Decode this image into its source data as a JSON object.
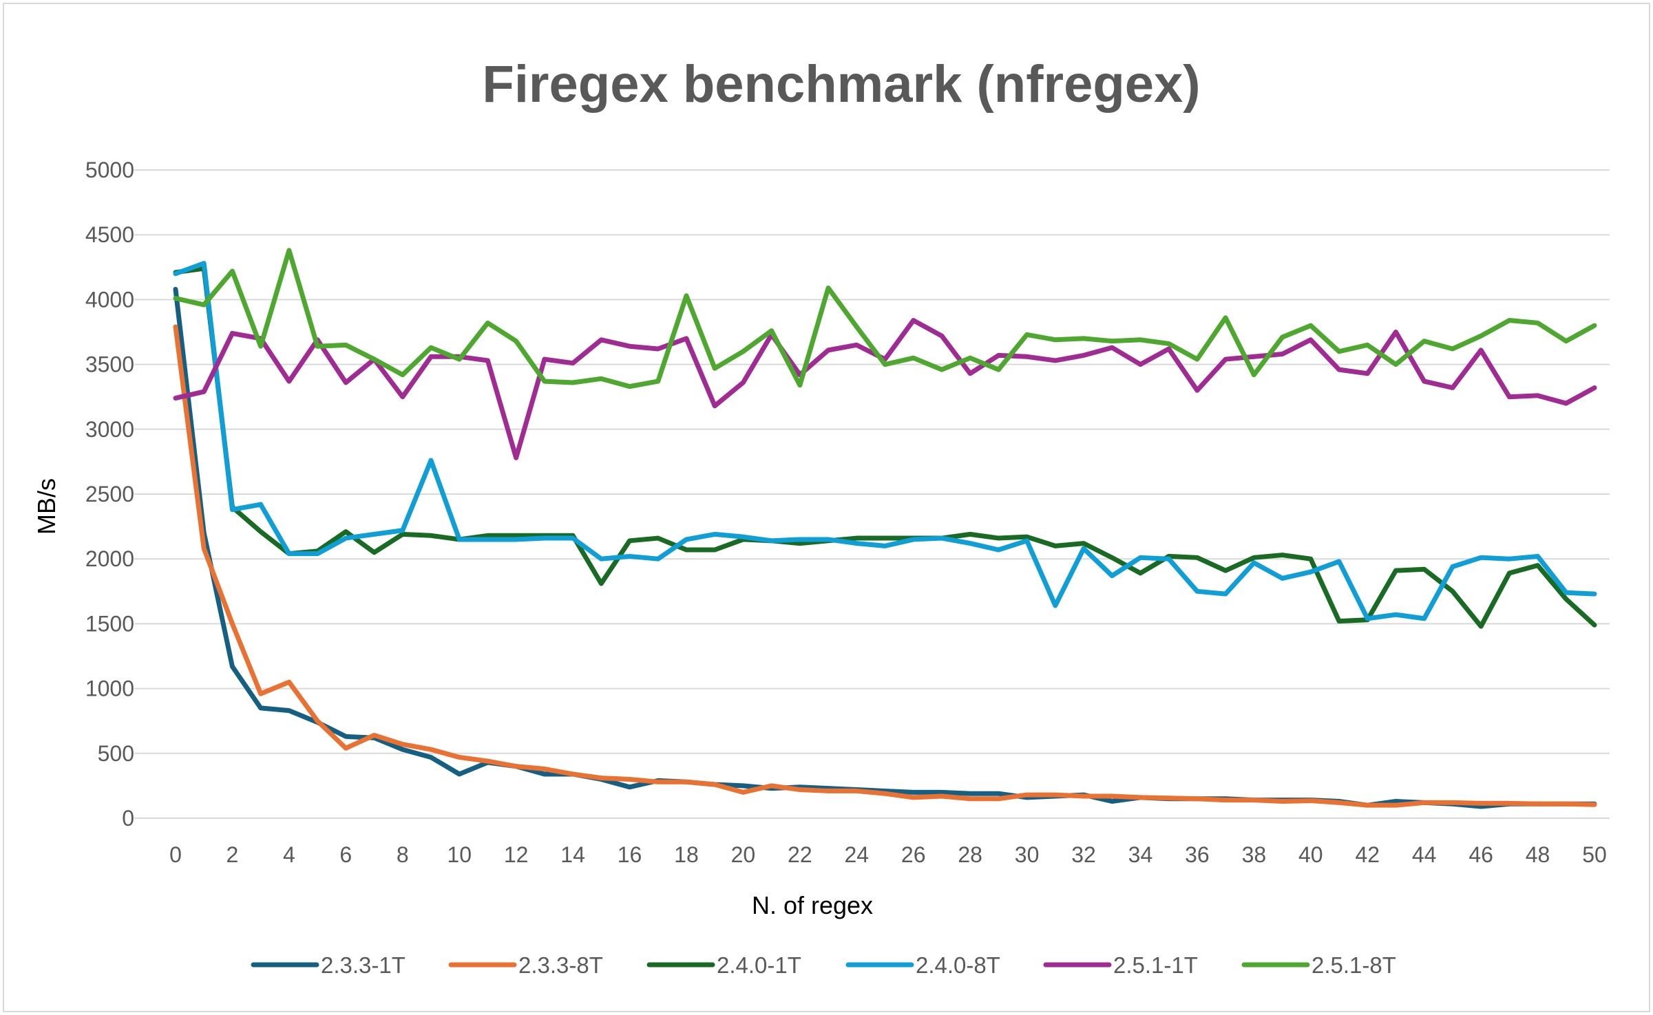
{
  "chart_data": {
    "type": "line",
    "title": "Firegex benchmark (nfregex)",
    "xlabel": "N. of regex",
    "ylabel": "MB/s",
    "xlim": [
      0,
      50
    ],
    "ylim": [
      0,
      5000
    ],
    "x_ticks": [
      0,
      2,
      4,
      6,
      8,
      10,
      12,
      14,
      16,
      18,
      20,
      22,
      24,
      26,
      28,
      30,
      32,
      34,
      36,
      38,
      40,
      42,
      44,
      46,
      48,
      50
    ],
    "y_ticks": [
      0,
      500,
      1000,
      1500,
      2000,
      2500,
      3000,
      3500,
      4000,
      4500,
      5000
    ],
    "grid": true,
    "legend_position": "bottom",
    "x": [
      0,
      1,
      2,
      3,
      4,
      5,
      6,
      7,
      8,
      9,
      10,
      11,
      12,
      13,
      14,
      15,
      16,
      17,
      18,
      19,
      20,
      21,
      22,
      23,
      24,
      25,
      26,
      27,
      28,
      29,
      30,
      31,
      32,
      33,
      34,
      35,
      36,
      37,
      38,
      39,
      40,
      41,
      42,
      43,
      44,
      45,
      46,
      47,
      48,
      49,
      50
    ],
    "series": [
      {
        "name": "2.3.3-1T",
        "color": "#156082",
        "values": [
          4080,
          2200,
          1170,
          850,
          830,
          740,
          630,
          620,
          530,
          470,
          340,
          430,
          400,
          340,
          340,
          300,
          240,
          290,
          280,
          260,
          250,
          230,
          240,
          230,
          220,
          210,
          200,
          200,
          190,
          190,
          160,
          170,
          180,
          130,
          160,
          150,
          150,
          150,
          140,
          140,
          140,
          130,
          100,
          130,
          120,
          110,
          90,
          110,
          110,
          110,
          110
        ]
      },
      {
        "name": "2.3.3-8T",
        "color": "#E97132",
        "values": [
          3790,
          2080,
          1500,
          960,
          1050,
          750,
          540,
          640,
          570,
          530,
          470,
          440,
          400,
          380,
          340,
          310,
          300,
          280,
          280,
          260,
          200,
          250,
          220,
          210,
          210,
          190,
          160,
          170,
          150,
          150,
          180,
          180,
          170,
          170,
          160,
          155,
          150,
          140,
          140,
          130,
          135,
          120,
          100,
          100,
          120,
          120,
          115,
          115,
          110,
          110,
          105
        ]
      },
      {
        "name": "2.4.0-1T",
        "color": "#196B24",
        "values": [
          4210,
          4240,
          2400,
          2210,
          2040,
          2060,
          2210,
          2050,
          2190,
          2180,
          2150,
          2180,
          2180,
          2180,
          2180,
          1810,
          2140,
          2160,
          2070,
          2070,
          2150,
          2140,
          2120,
          2140,
          2160,
          2160,
          2160,
          2160,
          2190,
          2160,
          2170,
          2100,
          2120,
          2010,
          1890,
          2020,
          2010,
          1910,
          2010,
          2030,
          2000,
          1520,
          1530,
          1910,
          1920,
          1750,
          1480,
          1890,
          1950,
          1690,
          1490
        ]
      },
      {
        "name": "2.4.0-8T",
        "color": "#0F9ED5",
        "values": [
          4200,
          4280,
          2380,
          2420,
          2040,
          2040,
          2160,
          2190,
          2220,
          2760,
          2150,
          2150,
          2150,
          2160,
          2160,
          2000,
          2020,
          2000,
          2150,
          2190,
          2170,
          2140,
          2150,
          2150,
          2120,
          2100,
          2150,
          2160,
          2120,
          2070,
          2140,
          1640,
          2080,
          1870,
          2010,
          2000,
          1750,
          1730,
          1970,
          1850,
          1900,
          1980,
          1540,
          1570,
          1540,
          1940,
          2010,
          2000,
          2020,
          1740,
          1730
        ]
      },
      {
        "name": "2.5.1-1T",
        "color": "#A02B93",
        "values": [
          3240,
          3290,
          3740,
          3700,
          3370,
          3690,
          3360,
          3540,
          3250,
          3560,
          3560,
          3530,
          2780,
          3540,
          3510,
          3690,
          3640,
          3620,
          3700,
          3180,
          3360,
          3730,
          3420,
          3610,
          3650,
          3540,
          3840,
          3720,
          3430,
          3570,
          3560,
          3530,
          3570,
          3630,
          3500,
          3620,
          3300,
          3540,
          3560,
          3580,
          3690,
          3460,
          3430,
          3750,
          3370,
          3320,
          3610,
          3250,
          3260,
          3200,
          3320
        ]
      },
      {
        "name": "2.5.1-8T",
        "color": "#4EA72E",
        "values": [
          4010,
          3960,
          4220,
          3640,
          4380,
          3640,
          3650,
          3540,
          3420,
          3630,
          3540,
          3820,
          3680,
          3370,
          3360,
          3390,
          3330,
          3370,
          4030,
          3470,
          3600,
          3760,
          3340,
          4090,
          3790,
          3500,
          3550,
          3460,
          3550,
          3460,
          3730,
          3690,
          3700,
          3680,
          3690,
          3660,
          3540,
          3860,
          3420,
          3710,
          3800,
          3600,
          3650,
          3500,
          3680,
          3620,
          3720,
          3840,
          3820,
          3680,
          3800
        ]
      }
    ]
  }
}
